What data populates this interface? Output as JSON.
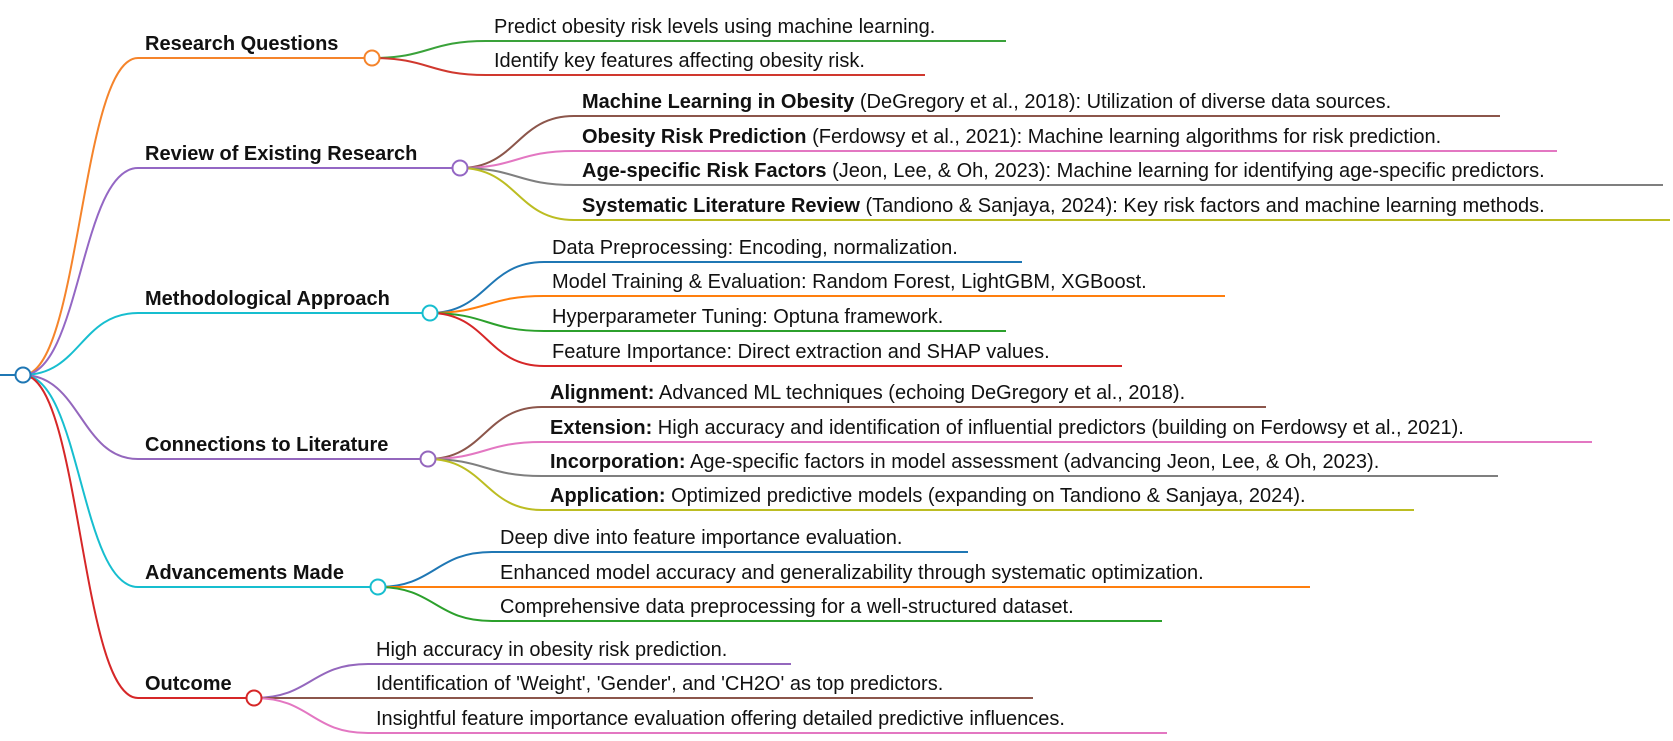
{
  "mindmap": {
    "branches": [
      {
        "label": "Research Questions",
        "color": "#f5842b",
        "leaves": [
          {
            "bold": "",
            "text": "Predict obesity risk levels using machine learning.",
            "color": "#3aa23a"
          },
          {
            "bold": "",
            "text": "Identify key features affecting obesity risk.",
            "color": "#d0382e"
          }
        ]
      },
      {
        "label": "Review of Existing Research",
        "color": "#9467c4",
        "leaves": [
          {
            "bold": "Machine Learning in Obesity",
            "text": " (DeGregory et al., 2018): Utilization of diverse data sources.",
            "color": "#8c564b"
          },
          {
            "bold": "Obesity Risk Prediction",
            "text": " (Ferdowsy et al., 2021): Machine learning algorithms for risk prediction.",
            "color": "#e377c2"
          },
          {
            "bold": "Age-specific Risk Factors",
            "text": " (Jeon, Lee, & Oh, 2023): Machine learning for identifying age-specific predictors.",
            "color": "#7f7f7f"
          },
          {
            "bold": "Systematic Literature Review",
            "text": " (Tandiono & Sanjaya, 2024): Key risk factors and machine learning methods.",
            "color": "#bcbd22"
          }
        ]
      },
      {
        "label": "Methodological Approach",
        "color": "#17becf",
        "leaves": [
          {
            "bold": "",
            "text": "Data Preprocessing: Encoding, normalization.",
            "color": "#1f77b4"
          },
          {
            "bold": "",
            "text": "Model Training & Evaluation: Random Forest, LightGBM, XGBoost.",
            "color": "#ff7f0e"
          },
          {
            "bold": "",
            "text": "Hyperparameter Tuning: Optuna framework.",
            "color": "#2ca02c"
          },
          {
            "bold": "",
            "text": "Feature Importance: Direct extraction and SHAP values.",
            "color": "#d62728"
          }
        ]
      },
      {
        "label": "Connections to Literature",
        "color": "#9467bd",
        "leaves": [
          {
            "bold": "Alignment:",
            "text": " Advanced ML techniques (echoing DeGregory et al., 2018).",
            "color": "#8c564b"
          },
          {
            "bold": "Extension:",
            "text": " High accuracy and identification of influential predictors (building on Ferdowsy et al., 2021).",
            "color": "#e377c2"
          },
          {
            "bold": "Incorporation:",
            "text": " Age-specific factors in model assessment (advancing Jeon, Lee, & Oh, 2023).",
            "color": "#7f7f7f"
          },
          {
            "bold": "Application:",
            "text": " Optimized predictive models (expanding on Tandiono & Sanjaya, 2024).",
            "color": "#bcbd22"
          }
        ]
      },
      {
        "label": "Advancements Made",
        "color": "#17becf",
        "leaves": [
          {
            "bold": "",
            "text": "Deep dive into feature importance evaluation.",
            "color": "#1f77b4"
          },
          {
            "bold": "",
            "text": "Enhanced model accuracy and generalizability through systematic optimization.",
            "color": "#ff7f0e"
          },
          {
            "bold": "",
            "text": "Comprehensive data preprocessing for a well-structured dataset.",
            "color": "#2ca02c"
          }
        ]
      },
      {
        "label": "Outcome",
        "color": "#d62728",
        "leaves": [
          {
            "bold": "",
            "text": "High accuracy in obesity risk prediction.",
            "color": "#9467bd"
          },
          {
            "bold": "",
            "text": "Identification of 'Weight', 'Gender', and 'CH2O' as top predictors.",
            "color": "#8c564b"
          },
          {
            "bold": "",
            "text": "Insightful feature importance evaluation offering detailed predictive influences.",
            "color": "#e377c2"
          }
        ]
      }
    ]
  }
}
